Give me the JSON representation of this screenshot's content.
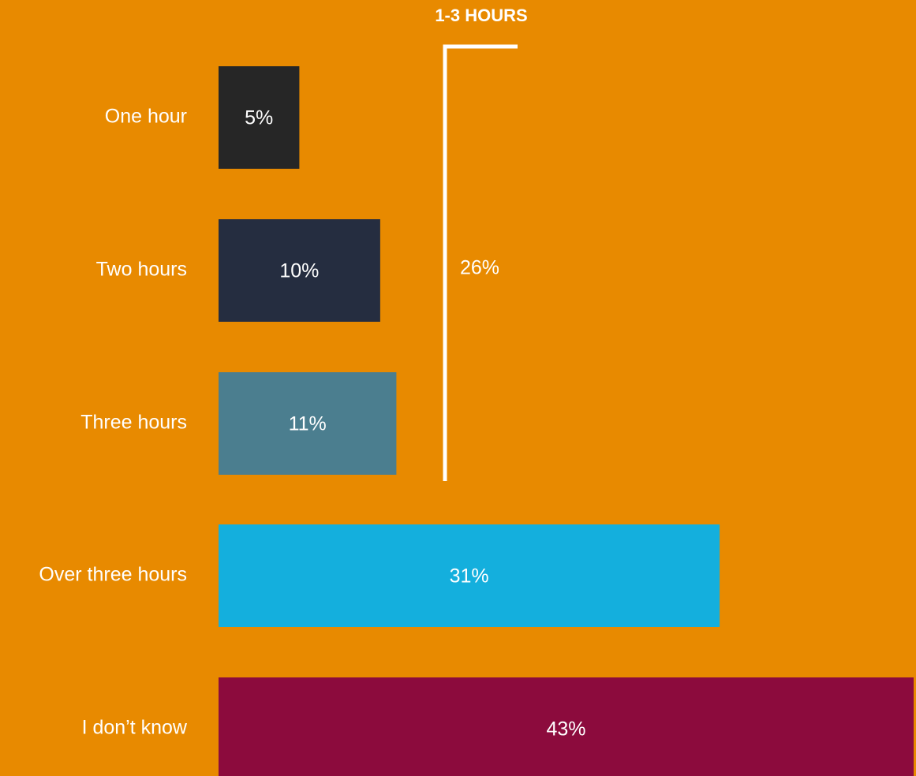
{
  "chart_data": {
    "type": "bar",
    "orientation": "horizontal",
    "categories": [
      "One hour",
      "Two hours",
      "Three hours",
      "Over three hours",
      "I don’t know"
    ],
    "values": [
      5,
      10,
      11,
      31,
      43
    ],
    "value_labels": [
      "5%",
      "10%",
      "11%",
      "31%",
      "43%"
    ],
    "colors": [
      "#262626",
      "#252D40",
      "#4B7E8F",
      "#14AFDD",
      "#8C0B3D"
    ],
    "background": "#E88A00",
    "text_color": "#FFFFFF",
    "title": "",
    "xlabel": "",
    "ylabel": "",
    "grid": false,
    "legend": "none",
    "annotation": {
      "title": "1-3 HOURS",
      "value_label": "26%",
      "spans_categories": [
        "One hour",
        "Two hours",
        "Three hours"
      ]
    }
  }
}
